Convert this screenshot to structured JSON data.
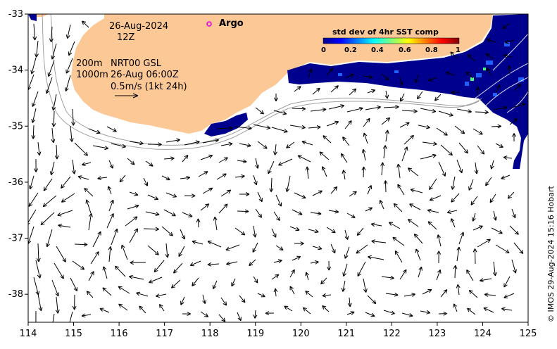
{
  "map": {
    "xaxis_ticks": [
      "114",
      "115",
      "116",
      "117",
      "118",
      "119",
      "120",
      "121",
      "122",
      "123",
      "124",
      "125"
    ],
    "yaxis_ticks": [
      "-33",
      "-34",
      "-35",
      "-36",
      "-37",
      "-38"
    ],
    "lon_range": [
      114,
      125
    ],
    "lat_range": [
      -38.5,
      -33
    ]
  },
  "annotations": {
    "date": "26-Aug-2024",
    "hour": "12Z",
    "line1_depth": "200m",
    "line1_text": "NRT00 GSL",
    "line2_depth": "1000m",
    "line2_text": "26-Aug 06:00Z",
    "scale_text": "0.5m/s (1kt 24h)",
    "argo_label": "Argo"
  },
  "colorbar": {
    "title": "std dev of 4hr SST comp",
    "ticks": [
      "0",
      "0.2",
      "0.4",
      "0.6",
      "0.8",
      "1"
    ]
  },
  "credit": "© IMOS 29-Aug-2024 15:16 Hobart",
  "colors": {
    "land": "#fcc896",
    "sst_dark": "#00008f",
    "argo": "#e600e6"
  }
}
